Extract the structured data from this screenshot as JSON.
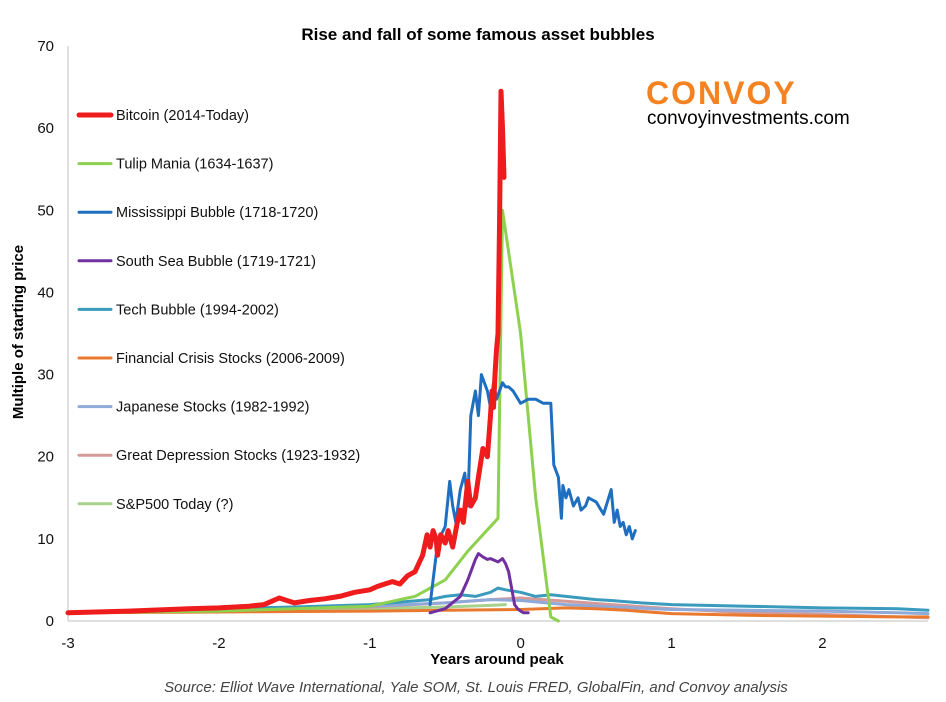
{
  "colors": {
    "bitcoin": "#ee1c1c",
    "tulip": "#8ed14f",
    "mississippi": "#1f6fc0",
    "southsea": "#7030a0",
    "tech": "#3a9bbd",
    "financial": "#e8792f",
    "japanese": "#8fa9d8",
    "depression": "#d49a98",
    "sp500": "#a9d18e",
    "logo": "#f58220"
  },
  "branding": {
    "logo_text": "CONVOY",
    "website": "convoyinvestments.com"
  },
  "source_note": "Source: Elliot Wave International, Yale SOM, St. Louis FRED, GlobalFin, and Convoy analysis",
  "chart_data": {
    "type": "line",
    "title": "Rise and fall of some famous asset bubbles",
    "xlabel": "Years around peak",
    "ylabel": "Multiple of starting price",
    "xlim": [
      -3,
      2.7
    ],
    "ylim": [
      0,
      70
    ],
    "x_ticks": [
      -3,
      -2,
      -1,
      0,
      1,
      2
    ],
    "x_tick_labels": [
      "-3",
      "-2",
      "-1",
      "0",
      "1",
      "2"
    ],
    "y_ticks": [
      0,
      10,
      20,
      30,
      40,
      50,
      60,
      70
    ],
    "y_tick_labels": [
      "0",
      "10",
      "20",
      "30",
      "40",
      "50",
      "60",
      "70"
    ],
    "grid": false,
    "legend_position": "left",
    "series": [
      {
        "name": "Bitcoin (2014-Today)",
        "color": "#ee1c1c",
        "x": [
          -3.0,
          -2.6,
          -2.2,
          -2.0,
          -1.8,
          -1.7,
          -1.6,
          -1.5,
          -1.4,
          -1.3,
          -1.2,
          -1.1,
          -1.0,
          -0.95,
          -0.9,
          -0.85,
          -0.8,
          -0.75,
          -0.7,
          -0.65,
          -0.62,
          -0.6,
          -0.58,
          -0.56,
          -0.55,
          -0.53,
          -0.5,
          -0.48,
          -0.45,
          -0.42,
          -0.4,
          -0.38,
          -0.35,
          -0.33,
          -0.3,
          -0.28,
          -0.25,
          -0.22,
          -0.2,
          -0.19,
          -0.18,
          -0.17,
          -0.16,
          -0.15,
          -0.14,
          -0.13,
          -0.12,
          -0.11
        ],
        "y": [
          1.0,
          1.2,
          1.5,
          1.6,
          1.8,
          2.0,
          2.8,
          2.2,
          2.5,
          2.7,
          3.0,
          3.5,
          3.8,
          4.2,
          4.5,
          4.8,
          4.5,
          5.5,
          6.0,
          8.0,
          10.5,
          9.0,
          11.0,
          10.0,
          8.0,
          10.5,
          9.5,
          11.0,
          9.0,
          12.0,
          13.5,
          12.0,
          17.0,
          14.0,
          15.0,
          17.5,
          21.0,
          20.0,
          25.0,
          28.0,
          26.0,
          30.0,
          33.0,
          35.0,
          48.0,
          64.5,
          60.0,
          54.0
        ]
      },
      {
        "name": "Tulip Mania (1634-1637)",
        "color": "#8ed14f",
        "x": [
          -3.0,
          -2.0,
          -1.0,
          -0.7,
          -0.5,
          -0.35,
          -0.15,
          -0.12,
          0.0,
          0.1,
          0.2,
          0.25
        ],
        "y": [
          1.0,
          1.2,
          1.8,
          3.0,
          5.0,
          8.5,
          12.5,
          50.0,
          35.0,
          15.0,
          0.5,
          0.0
        ]
      },
      {
        "name": "Mississippi Bubble (1718-1720)",
        "color": "#1f6fc0",
        "x": [
          -0.6,
          -0.58,
          -0.56,
          -0.54,
          -0.5,
          -0.47,
          -0.45,
          -0.43,
          -0.4,
          -0.37,
          -0.35,
          -0.33,
          -0.3,
          -0.28,
          -0.26,
          -0.24,
          -0.22,
          -0.2,
          -0.18,
          -0.16,
          -0.14,
          -0.12,
          -0.1,
          -0.08,
          -0.05,
          0.0,
          0.05,
          0.1,
          0.15,
          0.2,
          0.22,
          0.25,
          0.27,
          0.28,
          0.3,
          0.32,
          0.35,
          0.38,
          0.4,
          0.43,
          0.45,
          0.5,
          0.55,
          0.6,
          0.62,
          0.64,
          0.66,
          0.68,
          0.7,
          0.72,
          0.74,
          0.76
        ],
        "y": [
          2.0,
          5.0,
          8.0,
          10.0,
          11.5,
          17.0,
          14.0,
          12.0,
          16.0,
          18.0,
          14.0,
          25.0,
          28.0,
          25.0,
          30.0,
          29.0,
          28.0,
          26.0,
          29.0,
          27.0,
          28.0,
          29.0,
          28.5,
          28.5,
          28.0,
          26.5,
          27.0,
          27.0,
          26.5,
          26.5,
          19.0,
          17.5,
          12.5,
          16.5,
          15.0,
          16.0,
          14.0,
          15.0,
          13.5,
          14.0,
          15.0,
          14.5,
          13.0,
          16.0,
          12.0,
          13.5,
          11.5,
          12.0,
          10.5,
          11.5,
          10.0,
          11.0
        ]
      },
      {
        "name": "South Sea Bubble (1719-1721)",
        "color": "#7030a0",
        "x": [
          -0.6,
          -0.5,
          -0.4,
          -0.35,
          -0.3,
          -0.28,
          -0.25,
          -0.22,
          -0.2,
          -0.15,
          -0.12,
          -0.1,
          -0.08,
          -0.06,
          -0.04,
          -0.02,
          0.0,
          0.02,
          0.05
        ],
        "y": [
          1.0,
          1.5,
          3.0,
          5.0,
          7.5,
          8.2,
          7.8,
          7.5,
          7.6,
          7.2,
          7.6,
          7.0,
          6.0,
          4.0,
          2.0,
          1.5,
          1.2,
          1.0,
          1.0
        ]
      },
      {
        "name": "Tech Bubble (1994-2002)",
        "color": "#3a9bbd",
        "x": [
          -3.0,
          -2.5,
          -2.0,
          -1.5,
          -1.0,
          -0.8,
          -0.6,
          -0.5,
          -0.4,
          -0.3,
          -0.2,
          -0.15,
          -0.1,
          0.0,
          0.1,
          0.2,
          0.3,
          0.4,
          0.5,
          0.6,
          0.8,
          1.0,
          1.5,
          2.0,
          2.5,
          2.7
        ],
        "y": [
          1.0,
          1.2,
          1.5,
          1.7,
          2.0,
          2.3,
          2.6,
          3.0,
          3.2,
          3.0,
          3.5,
          4.0,
          3.8,
          3.5,
          3.0,
          3.2,
          3.0,
          2.8,
          2.6,
          2.5,
          2.2,
          2.0,
          1.8,
          1.6,
          1.5,
          1.3
        ]
      },
      {
        "name": "Financial Crisis Stocks (2006-2009)",
        "color": "#e8792f",
        "x": [
          -3.0,
          -2.0,
          -1.0,
          -0.5,
          0.0,
          0.3,
          0.5,
          0.7,
          1.0,
          1.5,
          2.0,
          2.5,
          2.7
        ],
        "y": [
          1.0,
          1.1,
          1.2,
          1.3,
          1.4,
          1.6,
          1.5,
          1.3,
          0.9,
          0.7,
          0.6,
          0.5,
          0.5
        ]
      },
      {
        "name": "Japanese Stocks (1982-1992)",
        "color": "#8fa9d8",
        "x": [
          -3.0,
          -2.0,
          -1.0,
          -0.5,
          -0.2,
          0.0,
          0.3,
          0.6,
          1.0,
          1.5,
          2.0,
          2.5,
          2.7
        ],
        "y": [
          1.0,
          1.3,
          1.8,
          2.2,
          2.6,
          2.5,
          2.0,
          1.7,
          1.4,
          1.3,
          1.2,
          1.0,
          0.9
        ]
      },
      {
        "name": "Great Depression Stocks (1923-1932)",
        "color": "#d49a98",
        "x": [
          -3.0,
          -2.0,
          -1.0,
          -0.5,
          -0.2,
          0.0,
          0.3,
          0.6,
          1.0,
          1.5,
          2.0,
          2.5,
          2.7
        ],
        "y": [
          1.0,
          1.3,
          1.7,
          2.2,
          2.6,
          2.8,
          2.4,
          2.0,
          1.5,
          1.0,
          0.8,
          0.5,
          0.4
        ]
      },
      {
        "name": "S&P500 Today (?)",
        "color": "#a9d18e",
        "x": [
          -3.0,
          -2.0,
          -1.0,
          -0.5,
          -0.2,
          -0.1
        ],
        "y": [
          1.0,
          1.2,
          1.5,
          1.7,
          1.9,
          2.0
        ]
      }
    ]
  }
}
